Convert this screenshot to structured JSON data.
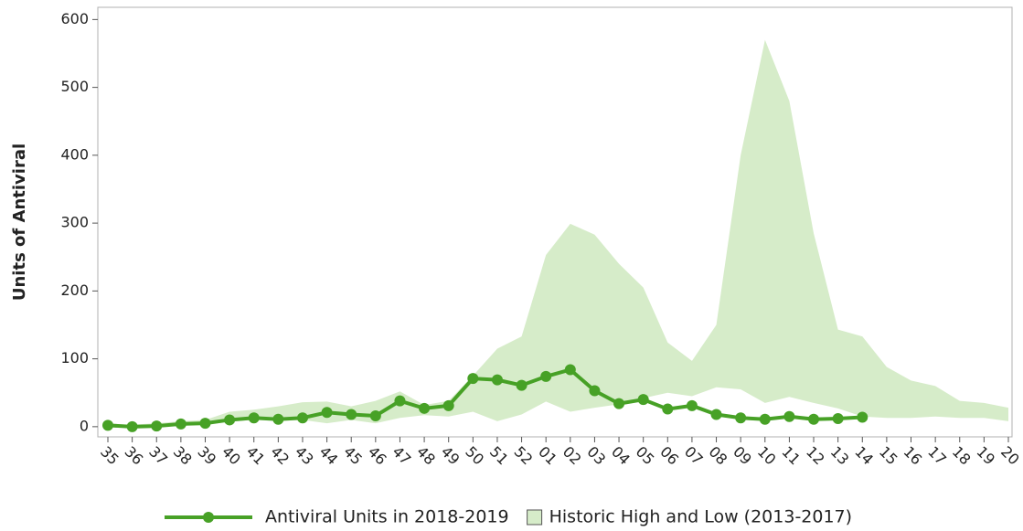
{
  "chart_data": {
    "type": "line",
    "y_label": "Units of Antiviral",
    "categories": [
      "35",
      "36",
      "37",
      "38",
      "39",
      "40",
      "41",
      "42",
      "43",
      "44",
      "45",
      "46",
      "47",
      "48",
      "49",
      "50",
      "51",
      "52",
      "01",
      "02",
      "03",
      "04",
      "05",
      "06",
      "07",
      "08",
      "09",
      "10",
      "11",
      "12",
      "13",
      "14",
      "15",
      "16",
      "17",
      "18",
      "19",
      "20"
    ],
    "series": [
      {
        "name": "Antiviral Units in 2018-2019",
        "color": "#47a126",
        "values": [
          2,
          0,
          1,
          4,
          5,
          10,
          13,
          11,
          13,
          21,
          18,
          16,
          38,
          27,
          31,
          71,
          69,
          61,
          74,
          84,
          53,
          34,
          40,
          26,
          31,
          18,
          13,
          11,
          15,
          11,
          12,
          14,
          null,
          null,
          null,
          null,
          null,
          null
        ]
      },
      {
        "name": "Historic High and Low (2013-2017)",
        "type": "band",
        "color": "#d6ecc9",
        "high": [
          3,
          3,
          5,
          8,
          10,
          22,
          25,
          30,
          36,
          37,
          30,
          38,
          52,
          32,
          38,
          75,
          115,
          133,
          253,
          299,
          283,
          240,
          205,
          124,
          97,
          150,
          400,
          570,
          480,
          285,
          143,
          133,
          88,
          68,
          60,
          38,
          35,
          28
        ],
        "low": [
          0,
          0,
          0,
          2,
          3,
          8,
          10,
          10,
          10,
          5,
          10,
          5,
          13,
          17,
          15,
          22,
          8,
          18,
          37,
          22,
          28,
          33,
          42,
          50,
          45,
          58,
          55,
          35,
          44,
          35,
          27,
          15,
          13,
          13,
          15,
          13,
          13,
          8
        ]
      }
    ],
    "ylim": [
      -15,
      618
    ],
    "yticks": [
      0,
      100,
      200,
      300,
      400,
      500,
      600
    ],
    "grid": false
  }
}
